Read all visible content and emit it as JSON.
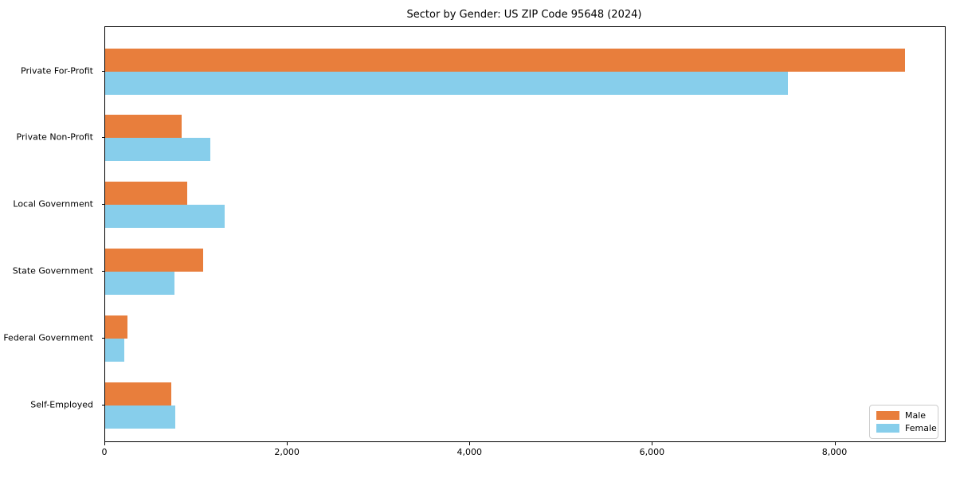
{
  "chart_data": {
    "type": "bar",
    "orientation": "horizontal",
    "title": "Sector by Gender: US ZIP Code 95648 (2024)",
    "categories": [
      "Private For-Profit",
      "Private Non-Profit",
      "Local Government",
      "State Government",
      "Federal Government",
      "Self-Employed"
    ],
    "series": [
      {
        "name": "Male",
        "color": "#E87E3C",
        "values": [
          8760,
          840,
          900,
          1070,
          240,
          720
        ]
      },
      {
        "name": "Female",
        "color": "#87CEEB",
        "values": [
          7480,
          1150,
          1310,
          760,
          210,
          770
        ]
      }
    ],
    "xlabel": "",
    "ylabel": "",
    "xlim": [
      0,
      9200
    ],
    "xticks": [
      0,
      2000,
      4000,
      6000,
      8000
    ],
    "xtick_labels": [
      "0",
      "2,000",
      "4,000",
      "6,000",
      "8,000"
    ],
    "grid": false,
    "legend_position": "lower right",
    "axis_color": "#000000",
    "background_color": "#ffffff"
  }
}
